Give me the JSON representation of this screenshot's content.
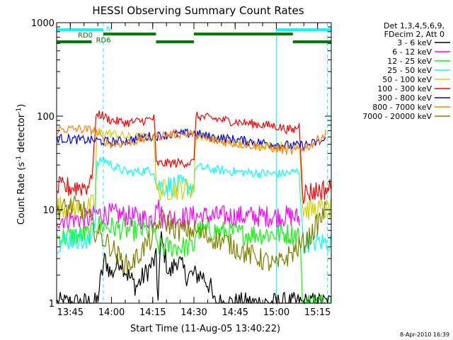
{
  "chart_data": {
    "type": "line",
    "title": "HESSI Observing Summary Count Rates",
    "xlabel": "Start Time (11-Aug-05 13:40:22)",
    "ylabel_main": "Count Rate (s",
    "ylabel_sup1": "-1",
    "ylabel_mid": " detector",
    "ylabel_sup2": "-1",
    "ylabel_end": ")",
    "yscale": "log",
    "ylim": [
      1,
      1000
    ],
    "xlim_minutes": [
      13.667,
      15.333
    ],
    "x_ticks": [
      {
        "label": "13:45",
        "hour": 13.75
      },
      {
        "label": "14:00",
        "hour": 14.0
      },
      {
        "label": "14:15",
        "hour": 14.25
      },
      {
        "label": "14:30",
        "hour": 14.5
      },
      {
        "label": "14:45",
        "hour": 14.75
      },
      {
        "label": "15:00",
        "hour": 15.0
      },
      {
        "label": "15:15",
        "hour": 15.25
      }
    ],
    "y_ticks": [
      {
        "label": "1",
        "value": 1
      },
      {
        "label": "10",
        "value": 10
      },
      {
        "label": "100",
        "value": 100
      },
      {
        "label": "1000",
        "value": 1000
      }
    ],
    "legend_header": [
      "Det 1,3,4,5,6,9,",
      "FDecim 2, Att 0"
    ],
    "legend_placement": "right",
    "series": [
      {
        "name": "3 - 6 keV",
        "color": "#000000",
        "points": [
          [
            13.67,
            1
          ],
          [
            13.91,
            1
          ],
          [
            13.94,
            2
          ],
          [
            13.96,
            3
          ],
          [
            14.0,
            2
          ],
          [
            14.05,
            3
          ],
          [
            14.1,
            2
          ],
          [
            14.15,
            1.5
          ],
          [
            14.2,
            2
          ],
          [
            14.27,
            3
          ],
          [
            14.28,
            1
          ],
          [
            14.3,
            5
          ],
          [
            14.35,
            2
          ],
          [
            14.4,
            3
          ],
          [
            14.45,
            2
          ],
          [
            14.5,
            2
          ],
          [
            14.55,
            2
          ],
          [
            14.6,
            1.5
          ],
          [
            14.62,
            1
          ],
          [
            15.33,
            1
          ]
        ]
      },
      {
        "name": "6 - 12 keV",
        "color": "#ff00ff",
        "points": [
          [
            13.67,
            8
          ],
          [
            13.88,
            8
          ],
          [
            13.9,
            9
          ],
          [
            14.0,
            9
          ],
          [
            14.1,
            8.5
          ],
          [
            14.2,
            8
          ],
          [
            14.26,
            8
          ],
          [
            14.27,
            14
          ],
          [
            14.29,
            10
          ],
          [
            14.31,
            8
          ],
          [
            14.5,
            8.5
          ],
          [
            14.7,
            8.5
          ],
          [
            14.9,
            8.5
          ],
          [
            15.1,
            8.5
          ],
          [
            15.14,
            8
          ]
        ]
      },
      {
        "name": "12 - 25 keV",
        "color": "#00ff00",
        "points": [
          [
            13.67,
            5
          ],
          [
            13.88,
            5.5
          ],
          [
            13.9,
            7
          ],
          [
            14.0,
            6.5
          ],
          [
            14.1,
            6
          ],
          [
            14.2,
            6
          ],
          [
            14.26,
            6
          ],
          [
            14.27,
            4
          ],
          [
            14.5,
            4
          ],
          [
            14.51,
            6
          ],
          [
            14.6,
            6
          ],
          [
            14.8,
            5.5
          ],
          [
            15.0,
            5.5
          ],
          [
            15.14,
            5.5
          ],
          [
            15.16,
            1
          ],
          [
            15.33,
            1
          ]
        ]
      },
      {
        "name": "25 - 50 keV",
        "color": "#00ffff",
        "points": [
          [
            13.67,
            4.5
          ],
          [
            13.8,
            5
          ],
          [
            13.85,
            4
          ],
          [
            13.9,
            8
          ],
          [
            13.91,
            30
          ],
          [
            13.95,
            35
          ],
          [
            14.0,
            30
          ],
          [
            14.05,
            27
          ],
          [
            14.1,
            25
          ],
          [
            14.2,
            26
          ],
          [
            14.26,
            26
          ],
          [
            14.27,
            18
          ],
          [
            14.5,
            18
          ],
          [
            14.51,
            29
          ],
          [
            14.6,
            27
          ],
          [
            14.8,
            25
          ],
          [
            15.0,
            24
          ],
          [
            15.1,
            25
          ],
          [
            15.14,
            26
          ],
          [
            15.16,
            4.5
          ],
          [
            15.33,
            4.5
          ]
        ]
      },
      {
        "name": "50 - 100 keV",
        "color": "#d2d200",
        "points": [
          [
            13.67,
            11
          ],
          [
            13.85,
            10
          ],
          [
            13.9,
            12
          ],
          [
            13.91,
            68
          ],
          [
            14.0,
            65
          ],
          [
            14.1,
            60
          ],
          [
            14.2,
            60
          ],
          [
            14.26,
            62
          ],
          [
            14.27,
            16
          ],
          [
            14.5,
            17
          ],
          [
            14.51,
            62
          ],
          [
            14.7,
            55
          ],
          [
            14.9,
            50
          ],
          [
            15.0,
            47
          ],
          [
            15.1,
            52
          ],
          [
            15.14,
            55
          ],
          [
            15.16,
            10
          ],
          [
            15.33,
            10
          ]
        ]
      },
      {
        "name": "100 - 300 keV",
        "color": "#ff0000",
        "points": [
          [
            13.67,
            17
          ],
          [
            13.85,
            18
          ],
          [
            13.88,
            22
          ],
          [
            13.91,
            110
          ],
          [
            13.95,
            100
          ],
          [
            14.0,
            90
          ],
          [
            14.1,
            85
          ],
          [
            14.2,
            90
          ],
          [
            14.26,
            95
          ],
          [
            14.27,
            31
          ],
          [
            14.5,
            32
          ],
          [
            14.51,
            100
          ],
          [
            14.6,
            95
          ],
          [
            14.8,
            85
          ],
          [
            15.0,
            78
          ],
          [
            15.1,
            70
          ],
          [
            15.14,
            80
          ],
          [
            15.16,
            15
          ],
          [
            15.33,
            17
          ]
        ]
      },
      {
        "name": "300 - 800 keV",
        "color": "#0000ff",
        "points": [
          [
            13.67,
            58
          ],
          [
            13.8,
            56
          ],
          [
            13.9,
            55
          ],
          [
            14.0,
            53
          ],
          [
            14.1,
            55
          ],
          [
            14.2,
            60
          ],
          [
            14.3,
            62
          ],
          [
            14.4,
            64
          ],
          [
            14.5,
            66
          ],
          [
            14.6,
            60
          ],
          [
            14.8,
            55
          ],
          [
            15.0,
            50
          ],
          [
            15.1,
            48
          ],
          [
            15.2,
            50
          ],
          [
            15.3,
            55
          ]
        ]
      },
      {
        "name": "800 - 7000 keV",
        "color": "#ff8000",
        "points": [
          [
            13.67,
            72
          ],
          [
            13.8,
            73
          ],
          [
            13.9,
            70
          ],
          [
            13.95,
            55
          ],
          [
            14.0,
            50
          ],
          [
            14.1,
            52
          ],
          [
            14.2,
            57
          ],
          [
            14.3,
            62
          ],
          [
            14.4,
            65
          ],
          [
            14.5,
            65
          ],
          [
            14.6,
            55
          ],
          [
            14.8,
            50
          ],
          [
            15.0,
            45
          ],
          [
            15.1,
            42
          ],
          [
            15.2,
            48
          ],
          [
            15.3,
            65
          ]
        ]
      },
      {
        "name": "7000 - 20000 keV",
        "color": "#808000",
        "points": [
          [
            13.67,
            10
          ],
          [
            13.8,
            11
          ],
          [
            13.85,
            9
          ],
          [
            13.9,
            6
          ],
          [
            14.0,
            4
          ],
          [
            14.05,
            3
          ],
          [
            14.1,
            2.5
          ],
          [
            14.15,
            3
          ],
          [
            14.2,
            4
          ],
          [
            14.25,
            5
          ],
          [
            14.3,
            8
          ],
          [
            14.35,
            7
          ],
          [
            14.4,
            6
          ],
          [
            14.5,
            6
          ],
          [
            14.6,
            5
          ],
          [
            14.7,
            4.5
          ],
          [
            14.8,
            3.5
          ],
          [
            14.9,
            3
          ],
          [
            15.0,
            2.5
          ],
          [
            15.05,
            3
          ],
          [
            15.1,
            3.5
          ],
          [
            15.2,
            5
          ],
          [
            15.3,
            10
          ]
        ]
      }
    ],
    "flag_bars": [
      {
        "label": "N",
        "color": "#00ffff",
        "segments": [
          [
            13.667,
            13.95
          ],
          [
            15.0,
            15.333
          ]
        ]
      },
      {
        "label": "RD0",
        "color": "#008000",
        "segments": [
          [
            13.95,
            14.27
          ],
          [
            14.5,
            15.1
          ]
        ]
      },
      {
        "label": "RD6",
        "color": "#008000",
        "segments": [
          [
            13.667,
            13.88
          ],
          [
            14.27,
            14.5
          ],
          [
            15.1,
            15.333
          ]
        ]
      }
    ],
    "vertical_markers": [
      {
        "hour": 13.667,
        "style": "solid"
      },
      {
        "hour": 13.95,
        "style": "dashed"
      },
      {
        "hour": 15.0,
        "style": "solid"
      },
      {
        "hour": 15.31,
        "style": "dashed"
      }
    ],
    "timestamp": "8-Apr-2010 16:39"
  }
}
